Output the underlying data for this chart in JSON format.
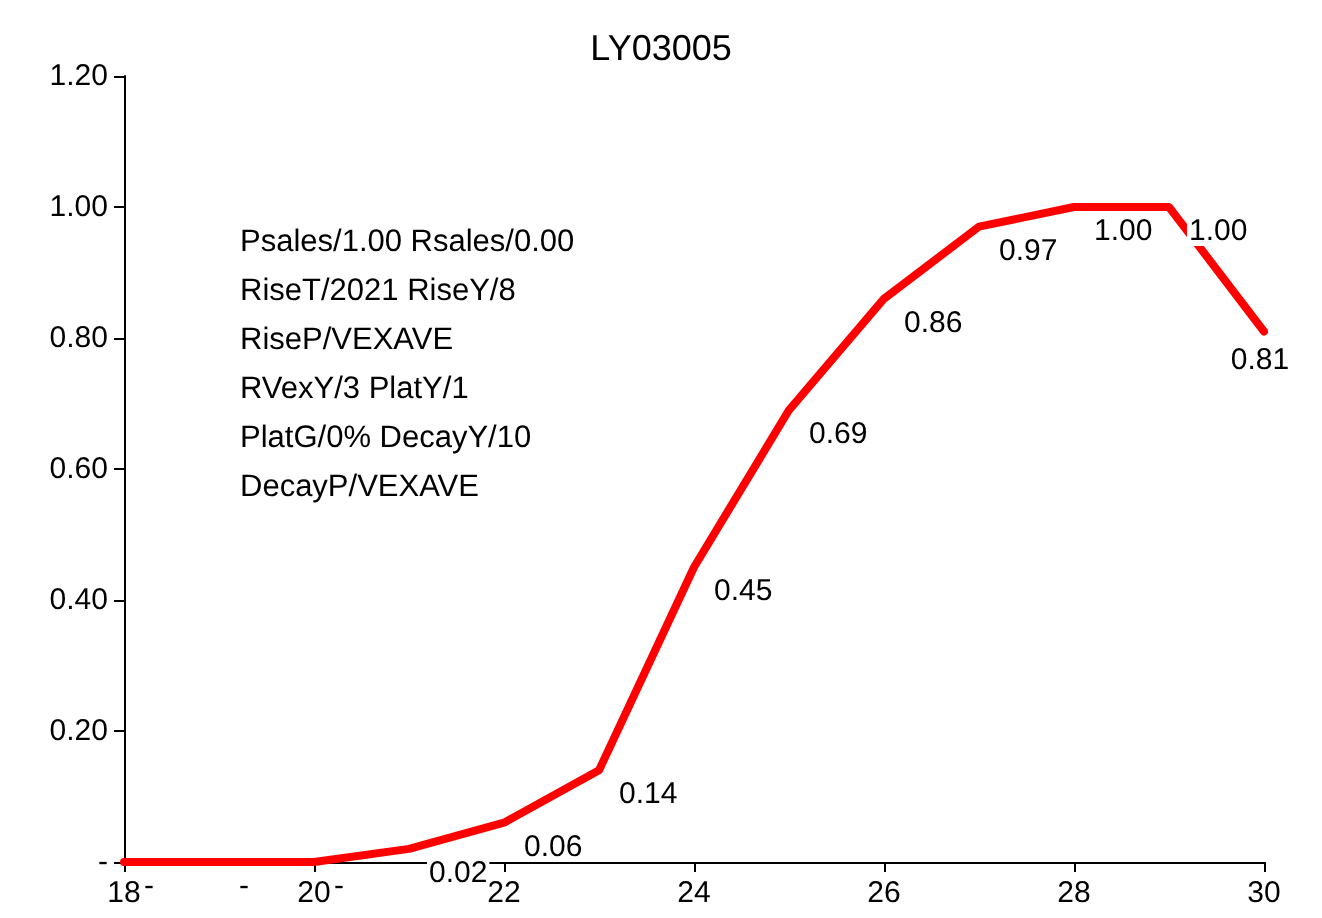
{
  "chart_data": {
    "type": "line",
    "title": "LY03005",
    "x": [
      18,
      19,
      20,
      21,
      22,
      23,
      24,
      25,
      26,
      27,
      28,
      29,
      30
    ],
    "series": [
      {
        "color": "#ff0000",
        "values": [
          0,
          0,
          0,
          0.02,
          0.06,
          0.14,
          0.45,
          0.69,
          0.86,
          0.97,
          1.0,
          1.0,
          0.81
        ],
        "value_labels": [
          "-",
          "-",
          "-",
          "0.02",
          "0.06",
          "0.14",
          "0.45",
          "0.69",
          "0.86",
          "0.97",
          "1.00",
          "1.00",
          "0.81"
        ]
      }
    ],
    "xlim": [
      18,
      30
    ],
    "xticks": [
      18,
      20,
      22,
      24,
      26,
      28,
      30
    ],
    "ylim": [
      0,
      1.2
    ],
    "yticks": [
      {
        "value": 0,
        "label": "-"
      },
      {
        "value": 0.2,
        "label": "0.20"
      },
      {
        "value": 0.4,
        "label": "0.40"
      },
      {
        "value": 0.6,
        "label": "0.60"
      },
      {
        "value": 0.8,
        "label": "0.80"
      },
      {
        "value": 1.0,
        "label": "1.00"
      },
      {
        "value": 1.2,
        "label": "1.20"
      }
    ],
    "annotations": [
      "Psales/1.00 Rsales/0.00",
      "RiseT/2021 RiseY/8",
      "RiseP/VEXAVE",
      "RVexY/3 PlatY/1",
      "PlatG/0% DecayY/10",
      "DecayP/VEXAVE"
    ],
    "grid": false,
    "marker": "none",
    "line_style": "solid"
  }
}
